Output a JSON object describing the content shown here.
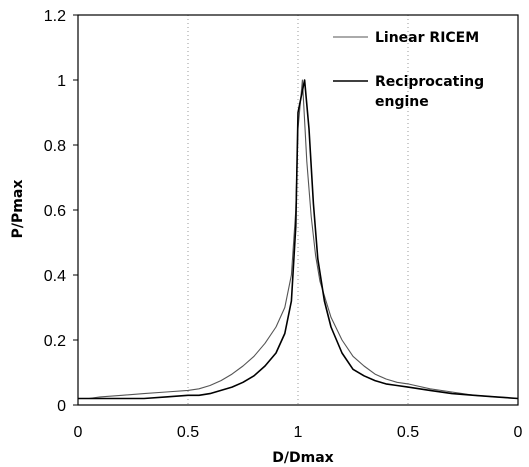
{
  "chart_data": {
    "type": "line",
    "xlabel": "D/Dmax",
    "ylabel": "P/Pmax",
    "x_tick_labels": [
      "0",
      "0.5",
      "1",
      "0.5",
      "0"
    ],
    "y_ticks": [
      0,
      0.2,
      0.4,
      0.6,
      0.8,
      1,
      1.2
    ],
    "y_tick_labels": [
      "0",
      "0.2",
      "0.4",
      "0.6",
      "0.8",
      "1",
      "1.2"
    ],
    "xlim": [
      0,
      2
    ],
    "ylim": [
      0,
      1.2
    ],
    "grid": "vertical dotted",
    "legend_position": "top-right",
    "series": [
      {
        "name": "Linear RICEM",
        "color": "#555555",
        "x": [
          0,
          0.05,
          0.1,
          0.2,
          0.3,
          0.4,
          0.5,
          0.55,
          0.6,
          0.65,
          0.7,
          0.75,
          0.8,
          0.85,
          0.9,
          0.94,
          0.97,
          0.99,
          1.0,
          1.02,
          1.04,
          1.06,
          1.08,
          1.1,
          1.15,
          1.2,
          1.25,
          1.3,
          1.35,
          1.4,
          1.45,
          1.5,
          1.6,
          1.7,
          1.8,
          1.9,
          2.0
        ],
        "y": [
          0.02,
          0.02,
          0.025,
          0.03,
          0.035,
          0.04,
          0.045,
          0.05,
          0.06,
          0.075,
          0.095,
          0.12,
          0.15,
          0.19,
          0.24,
          0.3,
          0.4,
          0.6,
          0.85,
          1.0,
          0.75,
          0.58,
          0.46,
          0.38,
          0.27,
          0.2,
          0.15,
          0.12,
          0.095,
          0.08,
          0.07,
          0.065,
          0.05,
          0.04,
          0.03,
          0.025,
          0.02
        ]
      },
      {
        "name": "Reciprocating engine",
        "color": "#000000",
        "x": [
          0,
          0.05,
          0.1,
          0.2,
          0.3,
          0.4,
          0.5,
          0.55,
          0.6,
          0.65,
          0.7,
          0.75,
          0.8,
          0.85,
          0.9,
          0.94,
          0.97,
          0.99,
          1.0,
          1.03,
          1.05,
          1.07,
          1.09,
          1.12,
          1.15,
          1.2,
          1.25,
          1.3,
          1.35,
          1.4,
          1.45,
          1.5,
          1.6,
          1.7,
          1.8,
          1.9,
          2.0
        ],
        "y": [
          0.02,
          0.02,
          0.02,
          0.02,
          0.02,
          0.025,
          0.03,
          0.03,
          0.035,
          0.045,
          0.055,
          0.07,
          0.09,
          0.12,
          0.16,
          0.22,
          0.32,
          0.55,
          0.9,
          1.0,
          0.85,
          0.62,
          0.45,
          0.32,
          0.24,
          0.16,
          0.11,
          0.09,
          0.075,
          0.065,
          0.06,
          0.055,
          0.045,
          0.035,
          0.03,
          0.025,
          0.02
        ]
      }
    ],
    "legend": {
      "linear_label": "Linear RICEM",
      "recip_label_line1": "Reciprocating",
      "recip_label_line2": "engine"
    }
  }
}
